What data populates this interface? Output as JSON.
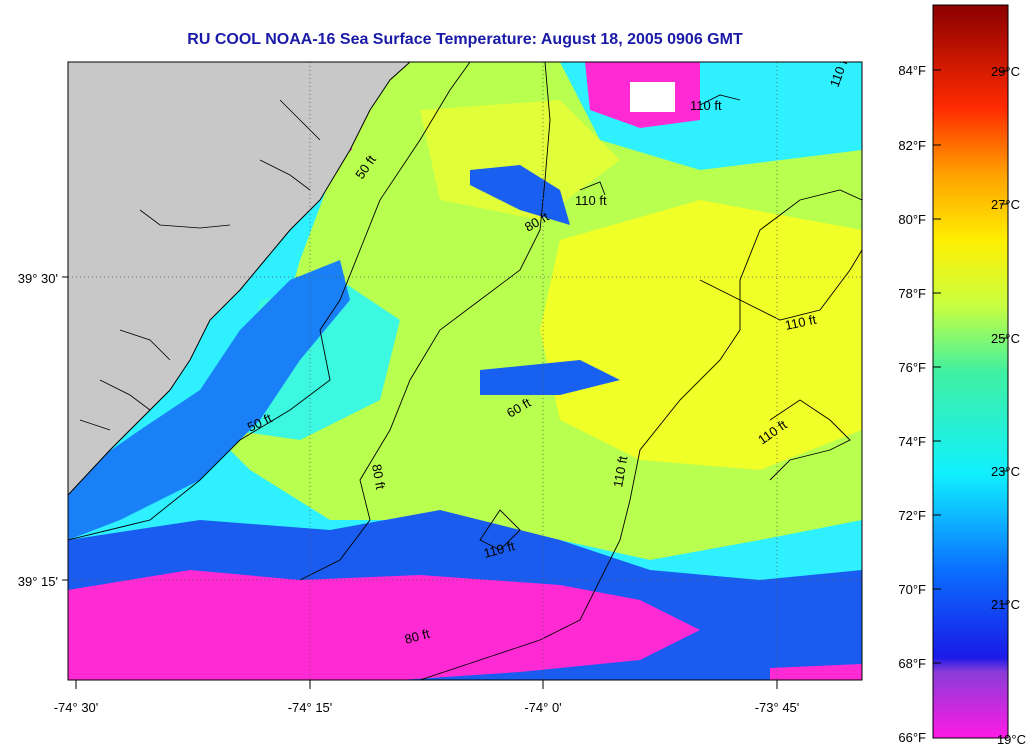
{
  "title": "RU COOL  NOAA-16  Sea Surface Temperature:  August 18, 2005 0906 GMT",
  "map": {
    "longitude_labels": [
      "-74° 30'",
      "-74° 15'",
      "-74° 0'",
      "-73° 45'"
    ],
    "latitude_labels": [
      "39° 30'",
      "39° 15'"
    ],
    "depth_contour_labels": [
      "50 ft",
      "60 ft",
      "80 ft",
      "110 ft"
    ],
    "colors": {
      "land": "#c8c8c8",
      "coastline": "#000000",
      "water_cold": "#ff2ad4",
      "water_cool": "#1560f0",
      "water_mid": "#2ef0ff",
      "water_warm": "#e8ff30"
    }
  },
  "colorbar": {
    "fahrenheit_labels": [
      "84°F",
      "82°F",
      "80°F",
      "78°F",
      "76°F",
      "74°F",
      "72°F",
      "70°F",
      "68°F",
      "66°F"
    ],
    "celsius_labels": [
      "29°C",
      "27°C",
      "25°C",
      "23°C",
      "21°C",
      "19°C"
    ],
    "range_celsius": [
      19,
      30
    ],
    "gradient_stops": [
      {
        "celsius": 19.0,
        "color": "#ff1ae6"
      },
      {
        "celsius": 20.0,
        "color": "#8a3cd8"
      },
      {
        "celsius": 20.2,
        "color": "#1a1ae8"
      },
      {
        "celsius": 21.5,
        "color": "#0a70ff"
      },
      {
        "celsius": 23.0,
        "color": "#10f0ff"
      },
      {
        "celsius": 24.5,
        "color": "#40f0a0"
      },
      {
        "celsius": 25.5,
        "color": "#c8ff40"
      },
      {
        "celsius": 26.5,
        "color": "#ffee00"
      },
      {
        "celsius": 27.5,
        "color": "#ffa000"
      },
      {
        "celsius": 28.5,
        "color": "#ff2a00"
      },
      {
        "celsius": 30.0,
        "color": "#8b0000"
      }
    ]
  }
}
